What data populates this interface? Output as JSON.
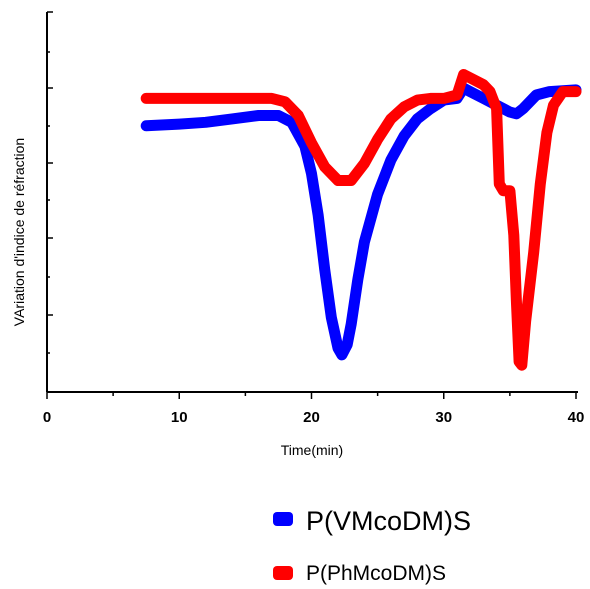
{
  "chart_data": {
    "type": "line",
    "xlabel": "Time(min)",
    "ylabel": "VAriation d'indice de réfraction",
    "xlim": [
      0,
      40
    ],
    "ylim": [
      0,
      1
    ],
    "x_ticks": [
      "0",
      "10",
      "20",
      "30",
      "40"
    ],
    "y_tick_labels_shown": false,
    "grid": false,
    "legend_position": "bottom-right",
    "series": [
      {
        "name": "P(VMcoDM)S",
        "color": "#0000ff",
        "points": [
          [
            7.5,
            0.72
          ],
          [
            10,
            0.725
          ],
          [
            12,
            0.73
          ],
          [
            14,
            0.74
          ],
          [
            16,
            0.75
          ],
          [
            17.5,
            0.75
          ],
          [
            18.5,
            0.73
          ],
          [
            19.5,
            0.66
          ],
          [
            20,
            0.58
          ],
          [
            20.5,
            0.46
          ],
          [
            21,
            0.3
          ],
          [
            21.5,
            0.16
          ],
          [
            22,
            0.07
          ],
          [
            22.3,
            0.05
          ],
          [
            22.7,
            0.08
          ],
          [
            23,
            0.14
          ],
          [
            23.5,
            0.27
          ],
          [
            24,
            0.38
          ],
          [
            25,
            0.52
          ],
          [
            26,
            0.62
          ],
          [
            27,
            0.69
          ],
          [
            28,
            0.74
          ],
          [
            29,
            0.77
          ],
          [
            30,
            0.795
          ],
          [
            31,
            0.8
          ],
          [
            31.5,
            0.83
          ],
          [
            32,
            0.82
          ],
          [
            33,
            0.8
          ],
          [
            34,
            0.78
          ],
          [
            35,
            0.76
          ],
          [
            35.5,
            0.755
          ],
          [
            36,
            0.77
          ],
          [
            37,
            0.81
          ],
          [
            38,
            0.82
          ],
          [
            40,
            0.825
          ]
        ]
      },
      {
        "name": "P(PhMcoDM)S",
        "color": "#ff0000",
        "points": [
          [
            7.5,
            0.8
          ],
          [
            10,
            0.8
          ],
          [
            14,
            0.8
          ],
          [
            17,
            0.8
          ],
          [
            18,
            0.79
          ],
          [
            19,
            0.75
          ],
          [
            20,
            0.67
          ],
          [
            21,
            0.6
          ],
          [
            22,
            0.56
          ],
          [
            23,
            0.56
          ],
          [
            24,
            0.61
          ],
          [
            25,
            0.68
          ],
          [
            26,
            0.74
          ],
          [
            27,
            0.775
          ],
          [
            28,
            0.795
          ],
          [
            29,
            0.8
          ],
          [
            30,
            0.8
          ],
          [
            31,
            0.81
          ],
          [
            31.5,
            0.87
          ],
          [
            32,
            0.86
          ],
          [
            33,
            0.84
          ],
          [
            33.5,
            0.82
          ],
          [
            34,
            0.77
          ],
          [
            34.2,
            0.55
          ],
          [
            34.5,
            0.53
          ],
          [
            35,
            0.53
          ],
          [
            35.3,
            0.4
          ],
          [
            35.5,
            0.2
          ],
          [
            35.7,
            0.03
          ],
          [
            35.9,
            0.02
          ],
          [
            36.2,
            0.15
          ],
          [
            36.8,
            0.35
          ],
          [
            37.3,
            0.55
          ],
          [
            37.8,
            0.7
          ],
          [
            38.3,
            0.78
          ],
          [
            39,
            0.82
          ],
          [
            40,
            0.82
          ]
        ]
      }
    ]
  },
  "legend": {
    "items": [
      {
        "label": "P(VMcoDM)S",
        "color": "#0000ff"
      },
      {
        "label": "P(PhMcoDM)S",
        "color": "#ff0000"
      }
    ]
  }
}
